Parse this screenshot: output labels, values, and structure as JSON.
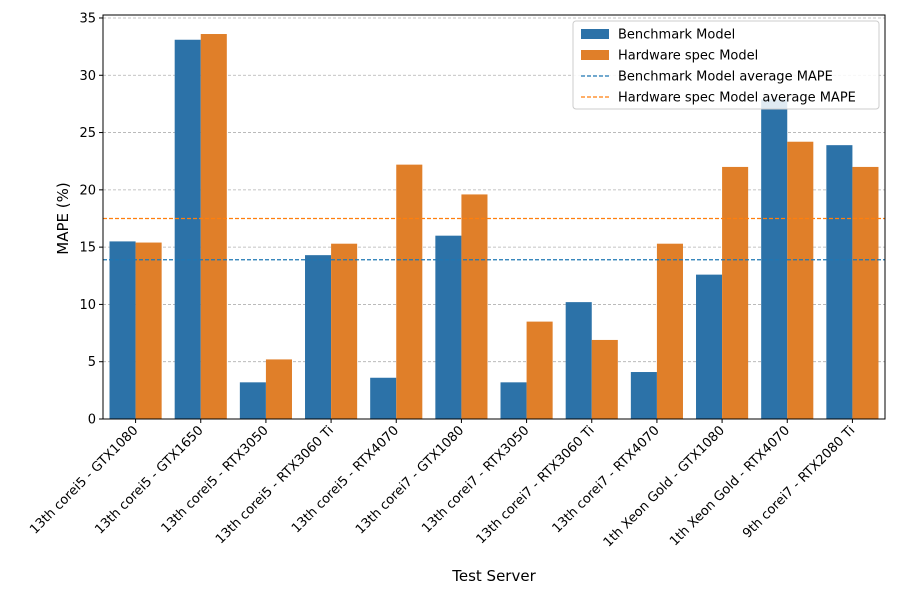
{
  "chart_data": {
    "type": "bar",
    "xlabel": "Test Server",
    "ylabel": "MAPE (%)",
    "ylim": [
      0,
      35
    ],
    "yticks": [
      0,
      5,
      10,
      15,
      20,
      25,
      30,
      35
    ],
    "grid": "y-dashed",
    "legend_placement": "top-right",
    "categories": [
      "13th corei5 - GTX1080",
      "13th corei5 - GTX1650",
      "13th corei5 - RTX3050",
      "13th corei5 - RTX3060 Ti",
      "13th corei5 - RTX4070",
      "13th corei7 - GTX1080",
      "13th corei7 - RTX3050",
      "13th corei7 - RTX3060 Ti",
      "13th corei7 - RTX4070",
      "1th Xeon Gold - GTX1080",
      "1th Xeon Gold - RTX4070",
      "9th corei7 - RTX2080 Ti"
    ],
    "series": [
      {
        "name": "Benchmark Model",
        "color": "#2c72a8",
        "values": [
          15.5,
          33.1,
          3.2,
          14.3,
          3.6,
          16.0,
          3.2,
          10.2,
          4.1,
          12.6,
          27.9,
          23.9
        ]
      },
      {
        "name": "Hardware spec Model",
        "color": "#e07f29",
        "values": [
          15.4,
          33.6,
          5.2,
          15.3,
          22.2,
          19.6,
          8.5,
          6.9,
          15.3,
          22.0,
          24.2,
          22.0
        ]
      }
    ],
    "reference_lines": [
      {
        "name": "Benchmark Model average MAPE",
        "value": 13.9,
        "color": "#1f77b4",
        "style": "dashed"
      },
      {
        "name": "Hardware spec Model average MAPE",
        "value": 17.5,
        "color": "#ff7f0e",
        "style": "dashed"
      }
    ]
  }
}
